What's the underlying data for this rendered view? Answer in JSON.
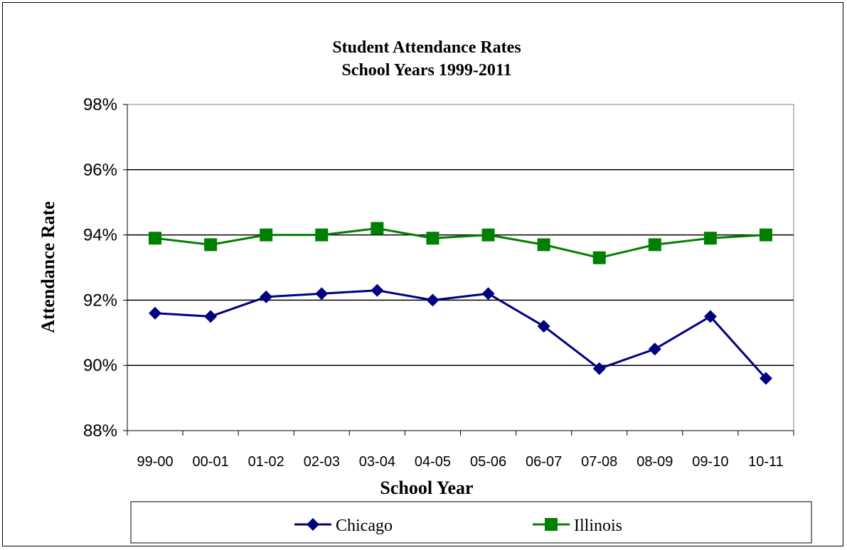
{
  "chart_data": {
    "type": "line",
    "title": "Student Attendance Rates",
    "subtitle": "School Years 1999-2011",
    "xlabel": "School Year",
    "ylabel": "Attendance Rate",
    "categories": [
      "99-00",
      "00-01",
      "01-02",
      "02-03",
      "03-04",
      "04-05",
      "05-06",
      "06-07",
      "07-08",
      "08-09",
      "09-10",
      "10-11"
    ],
    "ylim": [
      88,
      98
    ],
    "yticks": [
      "88%",
      "90%",
      "92%",
      "94%",
      "96%",
      "98%"
    ],
    "ytick_values": [
      88,
      90,
      92,
      94,
      96,
      98
    ],
    "grid": true,
    "legend_position": "bottom",
    "series": [
      {
        "name": "Chicago",
        "color": "#000080",
        "marker": "diamond",
        "values": [
          91.6,
          91.5,
          92.1,
          92.2,
          92.3,
          92.0,
          92.2,
          91.2,
          89.9,
          90.5,
          91.5,
          89.6
        ]
      },
      {
        "name": "Illinois",
        "color": "#008000",
        "marker": "square",
        "values": [
          93.9,
          93.7,
          94.0,
          94.0,
          94.2,
          93.9,
          94.0,
          93.7,
          93.3,
          93.7,
          93.9,
          94.0
        ]
      }
    ]
  }
}
